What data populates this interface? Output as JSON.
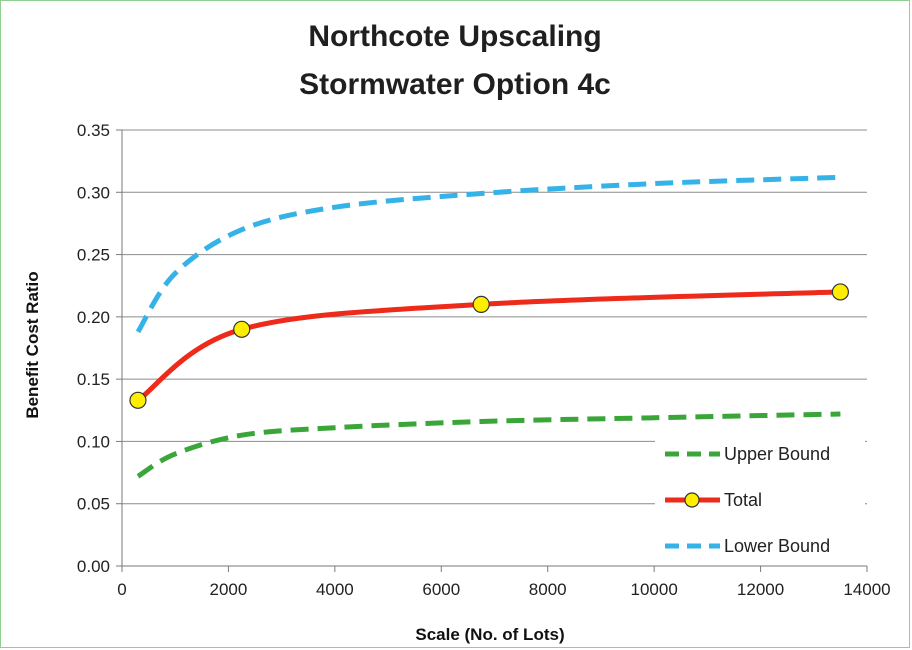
{
  "chart_data": {
    "type": "line",
    "title_lines": [
      "Northcote Upscaling",
      "Stormwater Option 4c"
    ],
    "xlabel": "Scale (No. of Lots)",
    "ylabel": "Benefit Cost Ratio",
    "xlim": [
      0,
      14000
    ],
    "ylim": [
      0,
      0.35
    ],
    "x_ticks": [
      "0",
      "2000",
      "4000",
      "6000",
      "8000",
      "10000",
      "12000",
      "14000"
    ],
    "y_ticks": [
      "0.00",
      "0.05",
      "0.10",
      "0.15",
      "0.20",
      "0.25",
      "0.30",
      "0.35"
    ],
    "grid": "horizontal",
    "legend_position": "bottom-right",
    "series": [
      {
        "name": "Upper Bound",
        "color": "#3aa63a",
        "style": "dashed",
        "x": [
          300,
          1000,
          2250,
          4000,
          6750,
          10000,
          13500
        ],
        "y": [
          0.072,
          0.09,
          0.105,
          0.111,
          0.116,
          0.119,
          0.122
        ]
      },
      {
        "name": "Total",
        "color": "#ee2a1b",
        "style": "solid",
        "markers": true,
        "marker_color": "#ffee00",
        "x": [
          300,
          2250,
          6750,
          13500
        ],
        "y": [
          0.133,
          0.19,
          0.21,
          0.22
        ]
      },
      {
        "name": "Lower Bound",
        "color": "#35b3e8",
        "style": "dashed",
        "x": [
          300,
          1000,
          2250,
          4000,
          6750,
          10000,
          13500
        ],
        "y": [
          0.188,
          0.235,
          0.27,
          0.288,
          0.299,
          0.307,
          0.312
        ]
      }
    ]
  }
}
